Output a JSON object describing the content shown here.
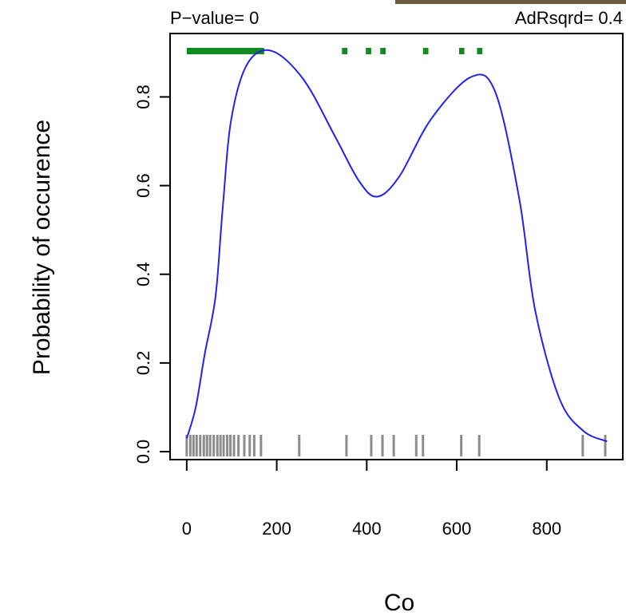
{
  "chart_data": {
    "type": "line",
    "title_left": "P−value= 0",
    "title_right": "AdRsqrd= 0.4",
    "xlabel": "Co",
    "ylabel": "Probability of occurence",
    "x": [
      0,
      20,
      40,
      64,
      80,
      99,
      135,
      188,
      259,
      330,
      383,
      423,
      472,
      543,
      632,
      686,
      739,
      774,
      828,
      881,
      934
    ],
    "y": [
      0.03,
      0.1,
      0.22,
      0.35,
      0.55,
      0.75,
      0.875,
      0.904,
      0.84,
      0.71,
      0.61,
      0.575,
      0.62,
      0.75,
      0.845,
      0.81,
      0.57,
      0.32,
      0.12,
      0.047,
      0.023
    ],
    "color": "#2222ee",
    "rug": [
      0,
      8,
      15,
      22,
      30,
      38,
      45,
      52,
      60,
      68,
      75,
      82,
      90,
      97,
      105,
      115,
      128,
      140,
      150,
      165,
      250,
      355,
      410,
      435,
      460,
      510,
      525,
      610,
      650,
      880,
      930
    ],
    "rug_color": "#8c8c8c",
    "highlight_segments": [
      [
        0,
        172
      ],
      [
        345,
        357
      ],
      [
        398,
        410
      ],
      [
        430,
        442
      ],
      [
        525,
        537
      ],
      [
        605,
        617
      ],
      [
        645,
        657
      ]
    ],
    "highlight_color": "#138a1e",
    "xlim": [
      -37,
      969
    ],
    "ylim": [
      -0.018,
      0.943
    ],
    "xticks": [
      0,
      200,
      400,
      600,
      800
    ],
    "yticks": [
      {
        "value": 0,
        "label": "0.0"
      },
      0.2,
      0.4,
      0.6,
      0.8
    ]
  }
}
